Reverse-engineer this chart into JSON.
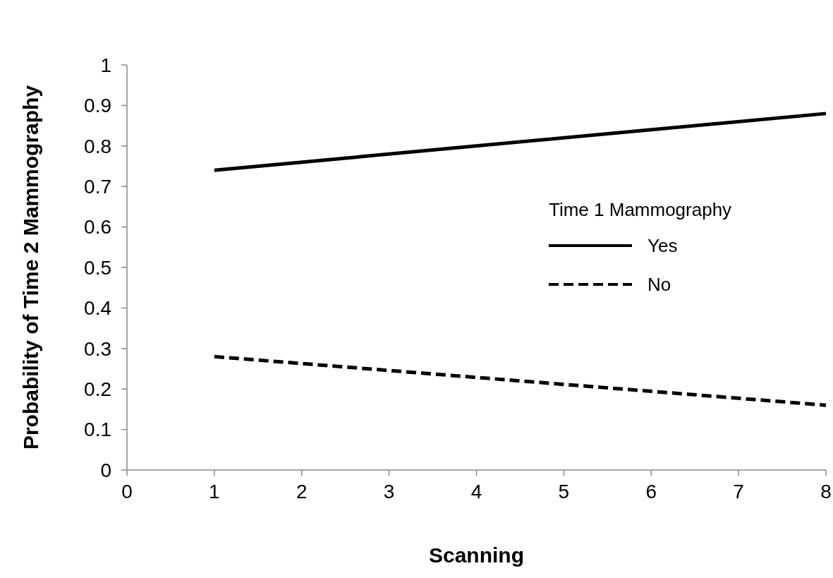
{
  "chart_data": {
    "type": "line",
    "xlabel": "Scanning",
    "ylabel": "Probability of Time 2 Mammography",
    "legend_title": "Time 1 Mammography",
    "legend": "right",
    "x": [
      1,
      8
    ],
    "series": [
      {
        "name": "Yes",
        "color": "#000000",
        "line_style": "solid",
        "values": [
          0.74,
          0.88
        ]
      },
      {
        "name": "No",
        "color": "#000000",
        "line_style": "dashed",
        "values": [
          0.28,
          0.16
        ]
      }
    ],
    "xlim": [
      0,
      8
    ],
    "xticks": [
      0,
      1,
      2,
      3,
      4,
      5,
      6,
      7,
      8
    ],
    "ylim": [
      0,
      1
    ],
    "yticks": [
      0,
      0.1,
      0.2,
      0.3,
      0.4,
      0.5,
      0.6,
      0.7,
      0.8,
      0.9,
      1
    ],
    "grid": false,
    "marker": "none"
  }
}
